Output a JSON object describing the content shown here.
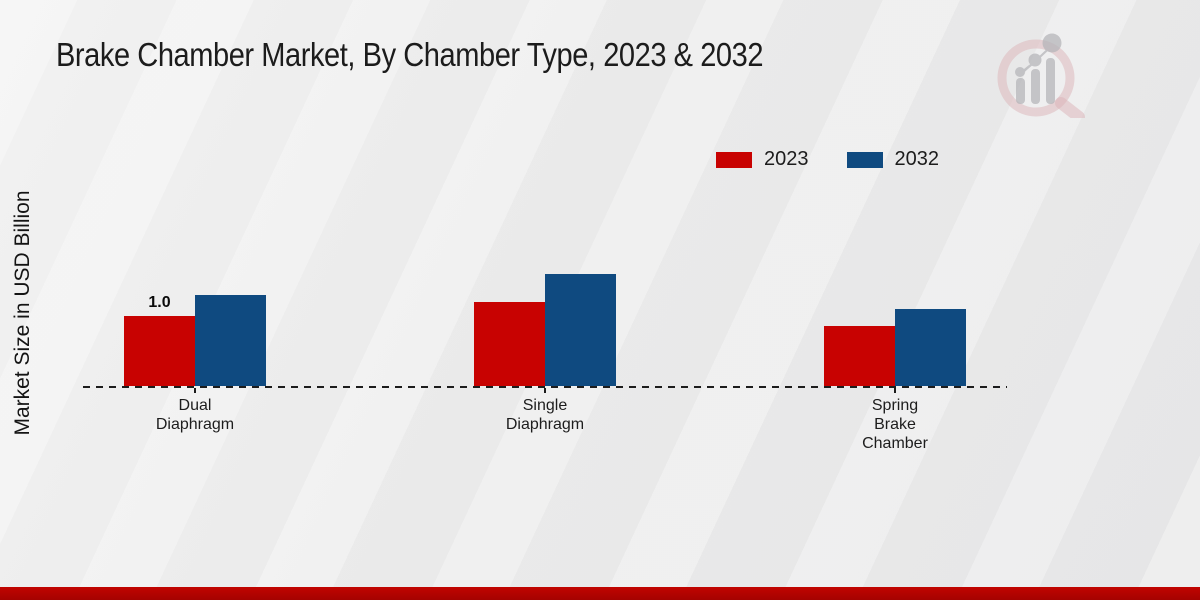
{
  "title": "Brake Chamber Market, By Chamber Type, 2023 & 2032",
  "ylabel": "Market Size in USD Billion",
  "footer_color": "#b50300",
  "watermark_icon": "magnifier-bar-chart-watermark",
  "chart_data": {
    "type": "bar",
    "title": "Brake Chamber Market, By Chamber Type, 2023 & 2032",
    "xlabel": "",
    "ylabel": "Market Size in USD Billion",
    "units": "USD Billion",
    "categories": [
      "Dual Diaphragm",
      "Single Diaphragm",
      "Spring Brake Chamber"
    ],
    "series": [
      {
        "name": "2023",
        "color": "#c80201",
        "values": [
          1.0,
          1.2,
          0.85
        ],
        "value_labels": [
          "1.0",
          "",
          ""
        ]
      },
      {
        "name": "2032",
        "color": "#0f4a80",
        "values": [
          1.3,
          1.6,
          1.1
        ],
        "value_labels": [
          "",
          "",
          ""
        ]
      }
    ],
    "ylim": [
      0,
      3
    ],
    "grid": false,
    "legend_position": "top-right",
    "baseline_style": "dashed",
    "y_axis_ticks_visible": false
  }
}
